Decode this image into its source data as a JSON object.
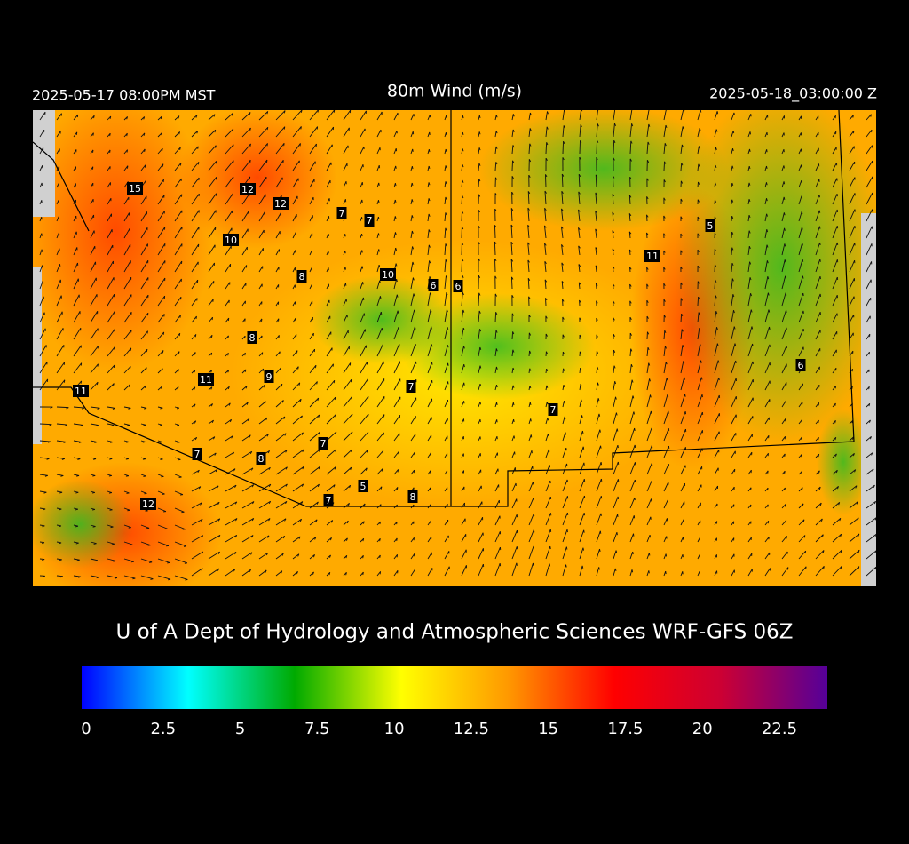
{
  "header": {
    "left": "2025-05-17 08:00PM MST",
    "title": "80m Wind (m/s)",
    "right": "2025-05-18_03:00:00 Z"
  },
  "map": {
    "station_labels": [
      15,
      12,
      12,
      7,
      7,
      10,
      5,
      11,
      8,
      10,
      6,
      6,
      8,
      6,
      11,
      9,
      11,
      7,
      7,
      7,
      7,
      8,
      5,
      7,
      8,
      12
    ]
  },
  "footer": "U of A Dept of Hydrology and Atmospheric Sciences WRF-GFS 06Z",
  "colorbar": {
    "lim": [
      0,
      24.2
    ],
    "ticks": [
      0,
      2.5,
      5,
      7.5,
      10,
      12.5,
      15,
      17.5,
      20,
      22.5
    ],
    "colors": [
      "#0000ff",
      "#00ffff",
      "#00aa00",
      "#ffff00",
      "#ff9900",
      "#ff0000",
      "#cc0033",
      "#550099"
    ]
  }
}
